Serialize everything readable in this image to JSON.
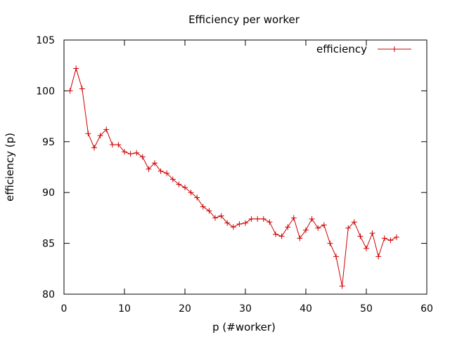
{
  "chart_data": {
    "type": "line",
    "title": "Efficiency per worker",
    "xlabel": "p (#worker)",
    "ylabel": "efficiency (p)",
    "xlim": [
      0,
      60
    ],
    "ylim": [
      80,
      105
    ],
    "xticks": [
      0,
      10,
      20,
      30,
      40,
      50,
      60
    ],
    "yticks": [
      80,
      85,
      90,
      95,
      100,
      105
    ],
    "grid": false,
    "legend_position": "top-right",
    "series": [
      {
        "name": "efficiency",
        "color": "#cc0000",
        "marker": "plus",
        "x": [
          1,
          2,
          3,
          4,
          5,
          6,
          7,
          8,
          9,
          10,
          11,
          12,
          13,
          14,
          15,
          16,
          17,
          18,
          19,
          20,
          21,
          22,
          23,
          24,
          25,
          26,
          27,
          28,
          29,
          30,
          31,
          32,
          33,
          34,
          35,
          36,
          37,
          38,
          39,
          40,
          41,
          42,
          43,
          44,
          45,
          46,
          47,
          48,
          49,
          50,
          51,
          52,
          53,
          54,
          55
        ],
        "y": [
          100.0,
          102.2,
          100.2,
          95.8,
          94.4,
          95.6,
          96.2,
          94.7,
          94.7,
          94.0,
          93.8,
          93.9,
          93.5,
          92.3,
          92.9,
          92.1,
          91.9,
          91.3,
          90.8,
          90.5,
          90.0,
          89.5,
          88.6,
          88.2,
          87.5,
          87.7,
          87.0,
          86.6,
          86.9,
          87.0,
          87.4,
          87.4,
          87.4,
          87.1,
          85.9,
          85.7,
          86.6,
          87.5,
          85.5,
          86.3,
          87.4,
          86.5,
          86.8,
          85.0,
          83.7,
          80.8,
          86.5,
          87.1,
          85.7,
          84.5,
          86.0,
          83.7,
          85.5,
          85.3,
          85.6
        ]
      }
    ]
  }
}
